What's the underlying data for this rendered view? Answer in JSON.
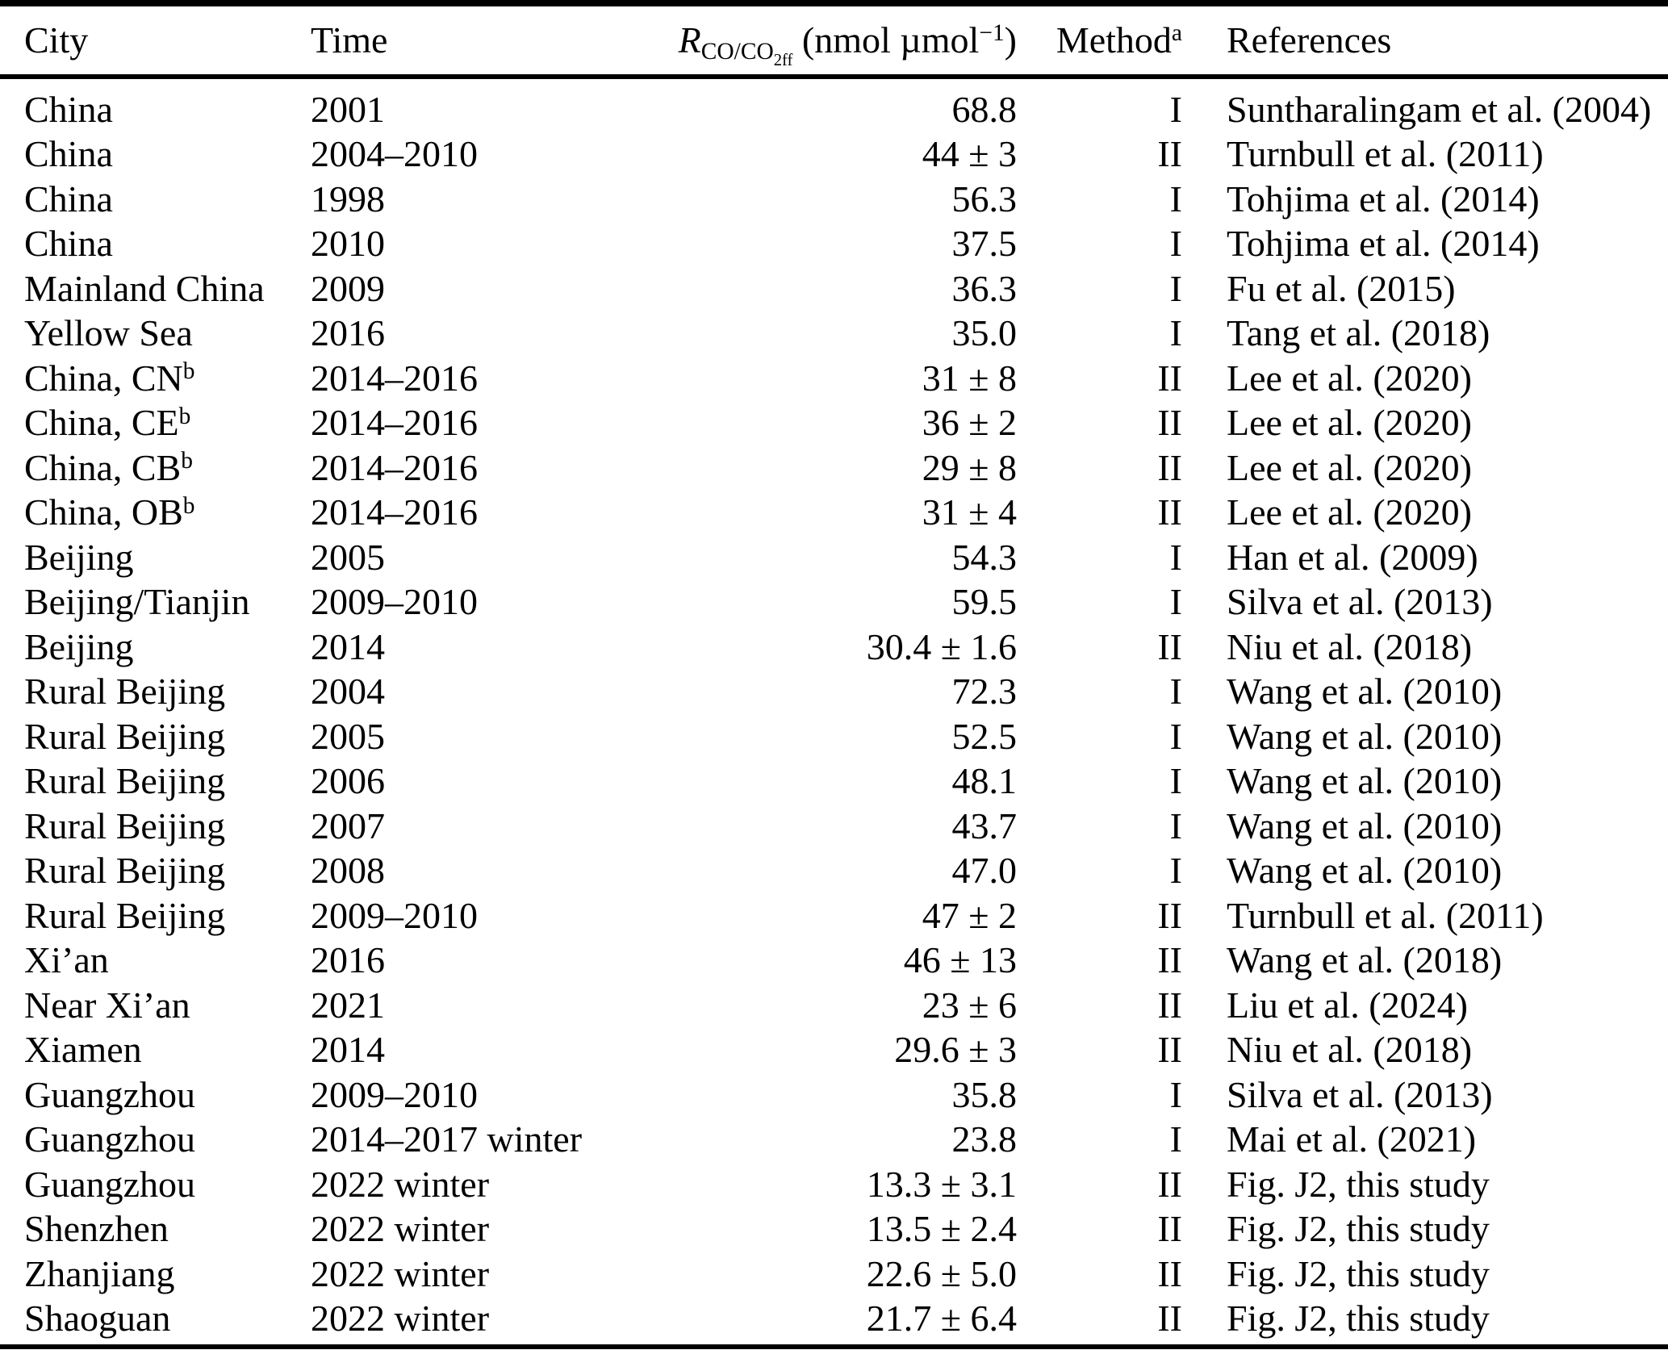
{
  "header": {
    "city": "City",
    "time": "Time",
    "ratio": {
      "symbol": "R",
      "subscript": "CO/CO",
      "subsubscript": "2ff",
      "unit_open": " (nmol µmol",
      "unit_exponent": "−1",
      "unit_close": ")"
    },
    "method": "Method",
    "method_sup": "a",
    "references": "References"
  },
  "rows": [
    {
      "city": "China",
      "time": "2001",
      "value": "68.8",
      "method": "I",
      "reference": "Suntharalingam et al. (2004)"
    },
    {
      "city": "China",
      "time": "2004–2010",
      "value": "44 ± 3",
      "method": "II",
      "reference": "Turnbull et al. (2011)"
    },
    {
      "city": "China",
      "time": "1998",
      "value": "56.3",
      "method": "I",
      "reference": "Tohjima et al. (2014)"
    },
    {
      "city": "China",
      "time": "2010",
      "value": "37.5",
      "method": "I",
      "reference": "Tohjima et al. (2014)"
    },
    {
      "city": "Mainland China",
      "time": "2009",
      "value": "36.3",
      "method": "I",
      "reference": "Fu et al. (2015)"
    },
    {
      "city": "Yellow Sea",
      "time": "2016",
      "value": "35.0",
      "method": "I",
      "reference": "Tang et al. (2018)"
    },
    {
      "city": "China, CN",
      "city_sup": "b",
      "time": "2014–2016",
      "value": "31 ± 8",
      "method": "II",
      "reference": "Lee et al. (2020)"
    },
    {
      "city": "China, CE",
      "city_sup": "b",
      "time": "2014–2016",
      "value": "36 ± 2",
      "method": "II",
      "reference": "Lee et al. (2020)"
    },
    {
      "city": "China, CB",
      "city_sup": "b",
      "time": "2014–2016",
      "value": "29 ± 8",
      "method": "II",
      "reference": "Lee et al. (2020)"
    },
    {
      "city": "China, OB",
      "city_sup": "b",
      "time": "2014–2016",
      "value": "31 ± 4",
      "method": "II",
      "reference": "Lee et al. (2020)"
    },
    {
      "city": "Beijing",
      "time": "2005",
      "value": "54.3",
      "method": "I",
      "reference": "Han et al. (2009)"
    },
    {
      "city": "Beijing/Tianjin",
      "time": "2009–2010",
      "value": "59.5",
      "method": "I",
      "reference": "Silva et al. (2013)"
    },
    {
      "city": "Beijing",
      "time": "2014",
      "value": "30.4 ± 1.6",
      "method": "II",
      "reference": "Niu et al. (2018)"
    },
    {
      "city": "Rural Beijing",
      "time": "2004",
      "value": "72.3",
      "method": "I",
      "reference": "Wang et al. (2010)"
    },
    {
      "city": "Rural Beijing",
      "time": "2005",
      "value": "52.5",
      "method": "I",
      "reference": "Wang et al. (2010)"
    },
    {
      "city": "Rural Beijing",
      "time": "2006",
      "value": "48.1",
      "method": "I",
      "reference": "Wang et al. (2010)"
    },
    {
      "city": "Rural Beijing",
      "time": "2007",
      "value": "43.7",
      "method": "I",
      "reference": "Wang et al. (2010)"
    },
    {
      "city": "Rural Beijing",
      "time": "2008",
      "value": "47.0",
      "method": "I",
      "reference": "Wang et al. (2010)"
    },
    {
      "city": "Rural Beijing",
      "time": "2009–2010",
      "value": "47 ± 2",
      "method": "II",
      "reference": "Turnbull et al. (2011)"
    },
    {
      "city": "Xi’an",
      "time": "2016",
      "value": "46 ± 13",
      "method": "II",
      "reference": "Wang et al. (2018)"
    },
    {
      "city": "Near Xi’an",
      "time": "2021",
      "value": "23 ± 6",
      "method": "II",
      "reference": "Liu et al. (2024)"
    },
    {
      "city": "Xiamen",
      "time": "2014",
      "value": "29.6 ± 3",
      "method": "II",
      "reference": "Niu et al. (2018)"
    },
    {
      "city": "Guangzhou",
      "time": "2009–2010",
      "value": "35.8",
      "method": "I",
      "reference": "Silva et al. (2013)"
    },
    {
      "city": "Guangzhou",
      "time": "2014–2017 winter",
      "value": "23.8",
      "method": "I",
      "reference": "Mai et al. (2021)"
    },
    {
      "city": "Guangzhou",
      "time": "2022 winter",
      "value": "13.3 ± 3.1",
      "method": "II",
      "reference": "Fig. J2, this study"
    },
    {
      "city": "Shenzhen",
      "time": "2022 winter",
      "value": "13.5 ± 2.4",
      "method": "II",
      "reference": "Fig. J2, this study"
    },
    {
      "city": "Zhanjiang",
      "time": "2022 winter",
      "value": "22.6 ± 5.0",
      "method": "II",
      "reference": "Fig. J2, this study"
    },
    {
      "city": "Shaoguan",
      "time": "2022 winter",
      "value": "21.7 ± 6.4",
      "method": "II",
      "reference": "Fig. J2, this study"
    }
  ]
}
